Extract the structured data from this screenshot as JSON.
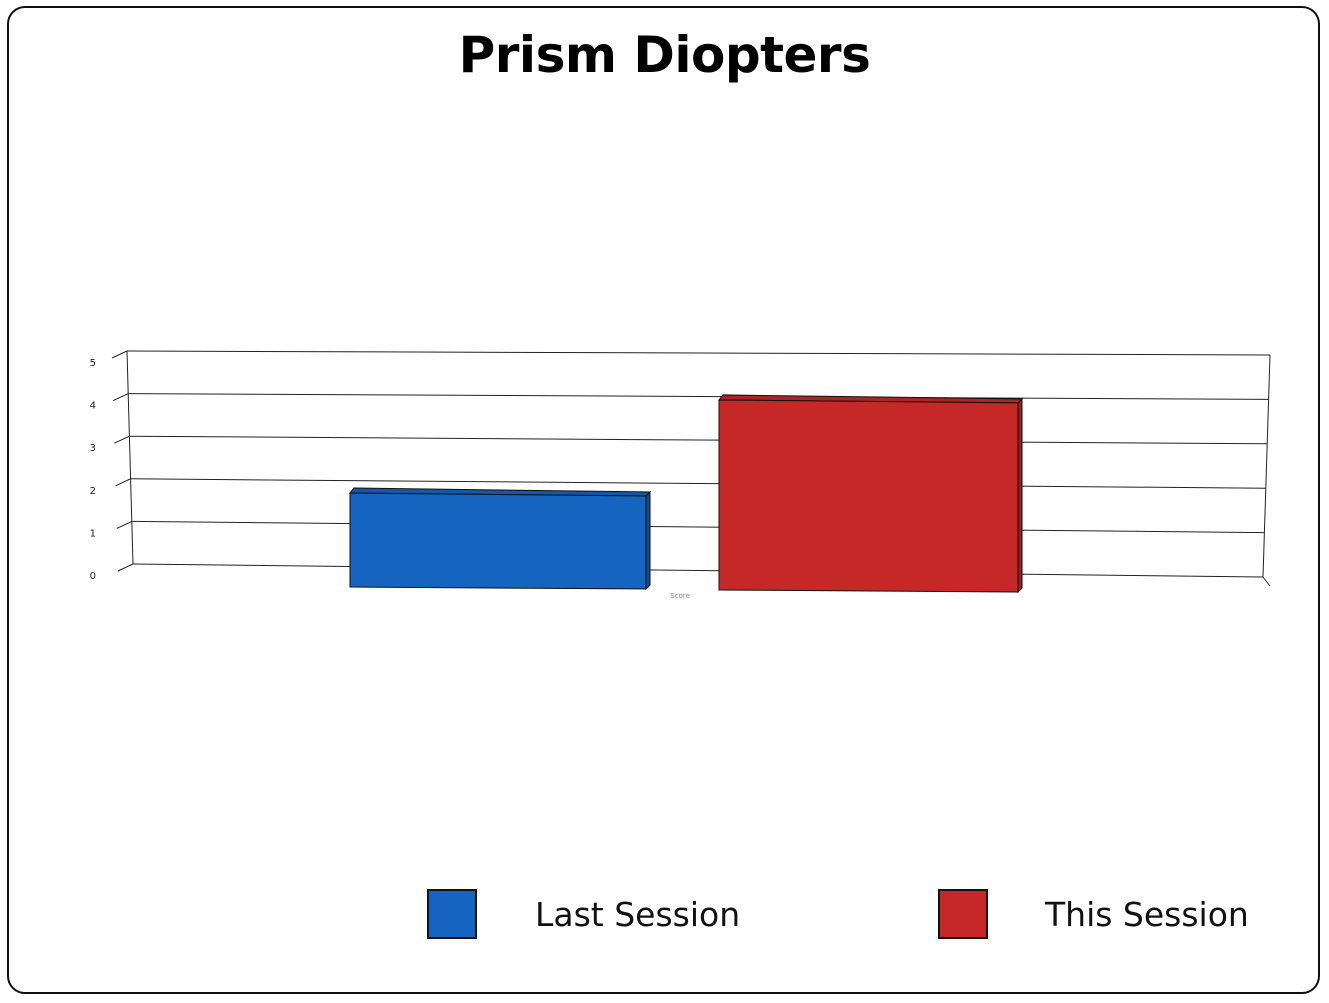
{
  "chart_data": {
    "type": "bar",
    "title": "Prism Diopters",
    "categories": [
      "Score"
    ],
    "series": [
      {
        "name": "Last Session",
        "values": [
          2
        ],
        "color": "#1565C0"
      },
      {
        "name": "This Session",
        "values": [
          4.3
        ],
        "color": "#C62828"
      }
    ],
    "xlabel": "",
    "ylabel": "",
    "ylim": [
      0,
      5
    ],
    "yticks": [
      "0",
      "1",
      "2",
      "3",
      "4",
      "5"
    ],
    "grid": true,
    "legend": "bottom"
  }
}
